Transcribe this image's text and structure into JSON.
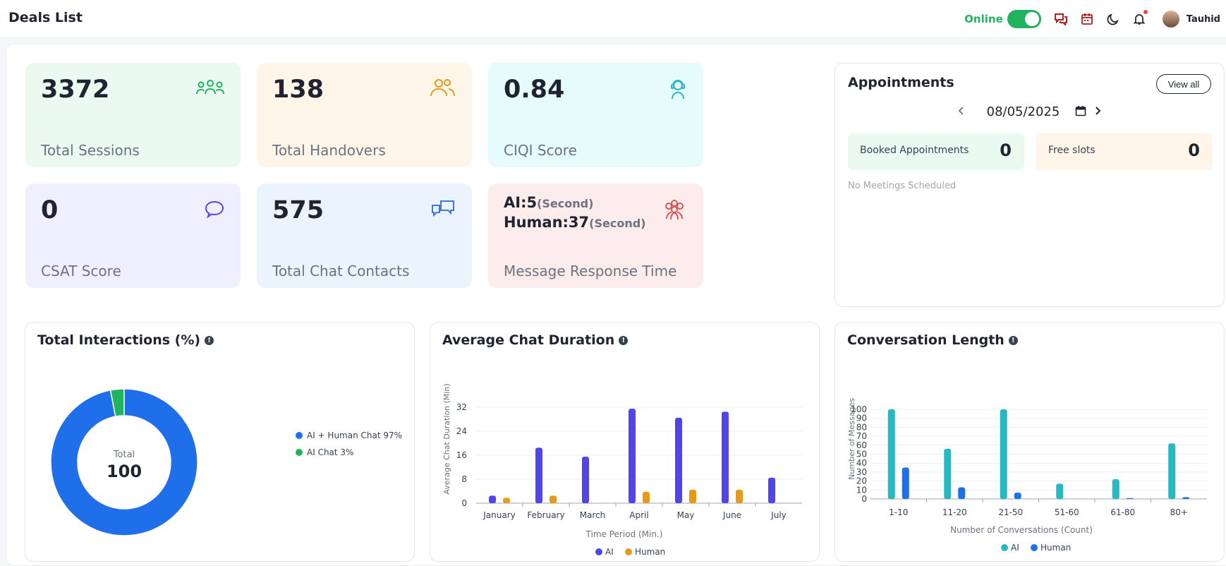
{
  "header": {
    "title": "Deals List",
    "online_label": "Online",
    "user_name": "Tauhid"
  },
  "stats": [
    {
      "value": "3372",
      "label": "Total Sessions",
      "icon": "users-group-icon",
      "bg": "#eafaf1",
      "icon_color": "#22b35e"
    },
    {
      "value": "138",
      "label": "Total Handovers",
      "icon": "users-icon",
      "bg": "#fff5e8",
      "icon_color": "#e69a17"
    },
    {
      "value": "0.84",
      "label": "CIQI Score",
      "icon": "agent-headset-icon",
      "bg": "#e6fbfb",
      "icon_color": "#27b8c2"
    },
    {
      "value": "0",
      "label": "CSAT Score",
      "icon": "chat-bubble-icon",
      "bg": "#efefff",
      "icon_color": "#5046e5"
    },
    {
      "value": "575",
      "label": "Total Chat Contacts",
      "icon": "chat-bubbles-icon",
      "bg": "#ebf3ff",
      "icon_color": "#3a78e0"
    },
    {
      "label": "Message Response Time",
      "icon": "team-icon",
      "bg": "#fdecec",
      "icon_color": "#e04848",
      "ai_label": "AI:5",
      "ai_unit": "(Second)",
      "human_label": "Human:37",
      "human_unit": "(Second)"
    }
  ],
  "appointments": {
    "title": "Appointments",
    "view_all": "View all",
    "date": "08/05/2025",
    "booked_label": "Booked Appointments",
    "booked_value": "0",
    "free_label": "Free slots",
    "free_value": "0",
    "empty_text": "No Meetings Scheduled"
  },
  "interactions": {
    "title": "Total Interactions (%)",
    "center_label": "Total",
    "center_value": "100",
    "legend": [
      {
        "label": "AI + Human Chat 97%",
        "color": "#1f6fea"
      },
      {
        "label": "AI Chat 3%",
        "color": "#22b35e"
      }
    ]
  },
  "duration": {
    "title": "Average Chat Duration",
    "xlabel": "Time Period (Min.)",
    "ylabel": "Average Chat Duration (Min)",
    "legend_ai": "AI",
    "legend_human": "Human"
  },
  "conversation": {
    "title": "Conversation Length",
    "xlabel": "Number of Conversations (Count)",
    "ylabel": "Number of Messages",
    "legend_ai": "AI",
    "legend_human": "Human"
  },
  "chart_data": [
    {
      "type": "pie",
      "title": "Total Interactions (%)",
      "categories": [
        "AI + Human Chat",
        "AI Chat"
      ],
      "values": [
        97,
        3
      ],
      "colors": [
        "#1f6fea",
        "#22b35e"
      ]
    },
    {
      "type": "bar",
      "title": "Average Chat Duration",
      "xlabel": "Time Period (Min.)",
      "ylabel": "Average Chat Duration (Min)",
      "categories": [
        "January",
        "February",
        "March",
        "April",
        "May",
        "June",
        "July"
      ],
      "ylim": [
        0,
        32
      ],
      "yticks": [
        0,
        8,
        16,
        24,
        32
      ],
      "series": [
        {
          "name": "AI",
          "color": "#5046e5",
          "values": [
            2.5,
            18.5,
            15.5,
            31.5,
            28.5,
            30.5,
            8.5
          ]
        },
        {
          "name": "Human",
          "color": "#e69a17",
          "values": [
            1.8,
            2.5,
            0,
            3.8,
            4.5,
            4.5,
            0
          ]
        }
      ]
    },
    {
      "type": "bar",
      "title": "Conversation Length",
      "xlabel": "Number of Conversations (Count)",
      "ylabel": "Number of Messages",
      "categories": [
        "1-10",
        "11-20",
        "21-50",
        "51-60",
        "61-80",
        "80+"
      ],
      "ylim": [
        0,
        100
      ],
      "yticks": [
        0,
        10,
        20,
        30,
        40,
        50,
        60,
        70,
        80,
        90,
        100
      ],
      "series": [
        {
          "name": "AI",
          "color": "#27b8c2",
          "values": [
            100,
            56,
            100,
            17,
            22,
            62
          ]
        },
        {
          "name": "Human",
          "color": "#1f6fea",
          "values": [
            35,
            13,
            7,
            0,
            1,
            2
          ]
        }
      ]
    }
  ]
}
